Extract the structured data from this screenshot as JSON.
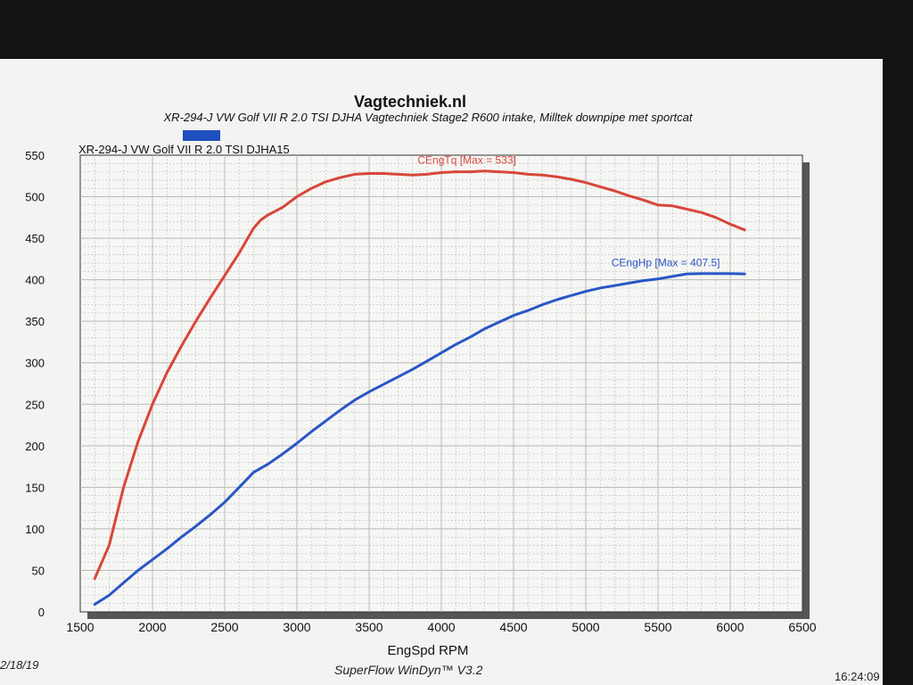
{
  "header": {
    "title": "Vagtechniek.nl",
    "subtitle": "XR-294-J VW Golf VII R 2.0 TSI DJHA Vagtechniek Stage2 R600 intake, Milltek downpipe met sportcat",
    "run_label": "XR-294-J VW Golf VII R 2.0 TSI DJHA15"
  },
  "footer": {
    "date": "2/18/19",
    "software": "SuperFlow WinDyn™ V3.2",
    "time": "16:24:09"
  },
  "colors": {
    "torque": "#d8463a",
    "power": "#2a56c6",
    "legend_swatch": "#1f4fbf",
    "grid": "#b9b9b9",
    "plot_bg": "#f6f6f4"
  },
  "chart_data": {
    "type": "line",
    "title": "",
    "xlabel": "EngSpd RPM",
    "ylabel": "",
    "xlim": [
      1500,
      6500
    ],
    "ylim": [
      0,
      550
    ],
    "x_ticks": [
      "1500",
      "2000",
      "2500",
      "3000",
      "3500",
      "4000",
      "4500",
      "5000",
      "5500",
      "6000",
      "6500"
    ],
    "y_ticks": [
      "0",
      "50",
      "100",
      "150",
      "200",
      "250",
      "300",
      "350",
      "400",
      "450",
      "500",
      "550"
    ],
    "grid": true,
    "series": [
      {
        "name": "CEngTq",
        "annotation": "CEngTq [Max = 533]",
        "color": "#d8463a",
        "x": [
          1600,
          1700,
          1800,
          1900,
          2000,
          2100,
          2200,
          2300,
          2400,
          2500,
          2600,
          2700,
          2750,
          2800,
          2900,
          3000,
          3100,
          3200,
          3300,
          3400,
          3500,
          3600,
          3700,
          3800,
          3900,
          4000,
          4100,
          4200,
          4300,
          4400,
          4500,
          4600,
          4700,
          4800,
          4900,
          5000,
          5100,
          5200,
          5300,
          5400,
          5500,
          5600,
          5700,
          5800,
          5900,
          6000,
          6100
        ],
        "values": [
          40,
          80,
          150,
          205,
          250,
          288,
          320,
          350,
          378,
          405,
          432,
          462,
          472,
          478,
          487,
          500,
          510,
          518,
          523,
          527,
          528,
          528,
          527,
          526,
          527,
          529,
          530,
          530,
          531,
          530,
          529,
          527,
          526,
          524,
          521,
          517,
          512,
          507,
          501,
          496,
          490,
          489,
          485,
          481,
          475,
          467,
          460
        ]
      },
      {
        "name": "CEngHp",
        "annotation": "CEngHp [Max = 407.5]",
        "color": "#2a56c6",
        "x": [
          1600,
          1700,
          1800,
          1900,
          2000,
          2100,
          2200,
          2300,
          2400,
          2500,
          2600,
          2700,
          2800,
          2900,
          3000,
          3100,
          3200,
          3300,
          3400,
          3500,
          3600,
          3700,
          3800,
          3900,
          4000,
          4100,
          4200,
          4300,
          4400,
          4500,
          4600,
          4700,
          4800,
          4900,
          5000,
          5100,
          5200,
          5300,
          5400,
          5500,
          5600,
          5700,
          5800,
          5900,
          6000,
          6100
        ],
        "values": [
          9,
          20,
          35,
          50,
          63,
          76,
          90,
          103,
          117,
          132,
          150,
          168,
          178,
          190,
          203,
          217,
          230,
          243,
          255,
          265,
          274,
          283,
          292,
          302,
          312,
          322,
          331,
          341,
          349,
          357,
          363,
          370,
          376,
          381,
          386,
          390,
          393,
          396,
          399,
          401,
          404,
          407,
          407.5,
          407.5,
          407.5,
          407
        ]
      }
    ]
  }
}
